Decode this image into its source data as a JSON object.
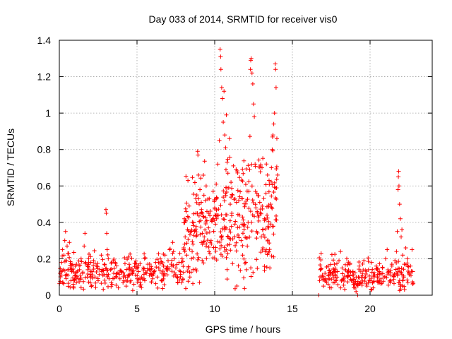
{
  "chart_data": {
    "type": "scatter",
    "title": "Day 033 of 2014, SRMTID for receiver vis0",
    "xlabel": "GPS time / hours",
    "ylabel": "SRMTID / TECUs",
    "xlim": [
      0,
      24
    ],
    "ylim": [
      0,
      1.4
    ],
    "xticks": [
      0,
      5,
      10,
      15,
      20
    ],
    "yticks": [
      0,
      0.2,
      0.4,
      0.6,
      0.8,
      1,
      1.2,
      1.4
    ],
    "xtick_labels": [
      "0",
      "5",
      "10",
      "15",
      "20"
    ],
    "ytick_labels": [
      "0",
      "0.2",
      "0.4",
      "0.6",
      "0.8",
      "1",
      "1.2",
      "1.4"
    ],
    "grid": true,
    "marker": "+",
    "color": "#ff0000",
    "series": [
      {
        "name": "vis0",
        "points": [
          [
            0.05,
            0.12
          ],
          [
            0.15,
            0.18
          ],
          [
            0.2,
            0.25
          ],
          [
            0.25,
            0.14
          ],
          [
            0.3,
            0.22
          ],
          [
            0.35,
            0.3
          ],
          [
            0.4,
            0.35
          ],
          [
            0.45,
            0.19
          ],
          [
            0.5,
            0.27
          ],
          [
            0.55,
            0.11
          ],
          [
            0.6,
            0.23
          ],
          [
            0.65,
            0.29
          ],
          [
            0.7,
            0.15
          ],
          [
            0.75,
            0.08
          ],
          [
            0.8,
            0.13
          ],
          [
            0.9,
            0.06
          ],
          [
            1.0,
            0.11
          ],
          [
            1.1,
            0.17
          ],
          [
            1.2,
            0.09
          ],
          [
            1.3,
            0.14
          ],
          [
            1.4,
            0.2
          ],
          [
            1.5,
            0.12
          ],
          [
            1.6,
            0.27
          ],
          [
            1.65,
            0.34
          ],
          [
            1.7,
            0.18
          ],
          [
            1.8,
            0.1
          ],
          [
            1.9,
            0.15
          ],
          [
            2.0,
            0.07
          ],
          [
            2.1,
            0.13
          ],
          [
            2.2,
            0.19
          ],
          [
            2.3,
            0.1
          ],
          [
            2.4,
            0.16
          ],
          [
            2.5,
            0.08
          ],
          [
            2.6,
            0.14
          ],
          [
            2.7,
            0.22
          ],
          [
            2.8,
            0.11
          ],
          [
            2.9,
            0.17
          ],
          [
            3.0,
            0.47
          ],
          [
            3.02,
            0.45
          ],
          [
            3.05,
            0.34
          ],
          [
            3.08,
            0.25
          ],
          [
            3.15,
            0.2
          ],
          [
            3.2,
            0.09
          ],
          [
            3.3,
            0.14
          ],
          [
            3.4,
            0.06
          ],
          [
            3.5,
            0.12
          ],
          [
            3.6,
            0.18
          ],
          [
            3.7,
            0.1
          ],
          [
            3.8,
            0.04
          ],
          [
            3.9,
            0.09
          ],
          [
            4.0,
            0.13
          ],
          [
            4.1,
            0.07
          ],
          [
            4.2,
            0.11
          ],
          [
            4.3,
            0.05
          ],
          [
            4.4,
            0.1
          ],
          [
            4.5,
            0.14
          ],
          [
            4.6,
            0.08
          ],
          [
            4.7,
            0.12
          ],
          [
            4.8,
            0.06
          ],
          [
            4.9,
            0.11
          ],
          [
            5.0,
            0.09
          ],
          [
            5.1,
            0.13
          ],
          [
            5.2,
            0.07
          ],
          [
            5.3,
            0.1
          ],
          [
            5.4,
            0.15
          ],
          [
            5.5,
            0.08
          ],
          [
            5.6,
            0.12
          ],
          [
            5.7,
            0.17
          ],
          [
            5.8,
            0.11
          ],
          [
            5.9,
            0.14
          ],
          [
            6.0,
            0.09
          ],
          [
            6.1,
            0.13
          ],
          [
            6.2,
            0.18
          ],
          [
            6.3,
            0.1
          ],
          [
            6.4,
            0.15
          ],
          [
            6.5,
            0.2
          ],
          [
            6.6,
            0.12
          ],
          [
            6.7,
            0.16
          ],
          [
            6.8,
            0.22
          ],
          [
            6.9,
            0.14
          ],
          [
            7.0,
            0.19
          ],
          [
            7.1,
            0.25
          ],
          [
            7.2,
            0.17
          ],
          [
            7.3,
            0.29
          ],
          [
            7.35,
            0.24
          ],
          [
            7.4,
            0.2
          ],
          [
            7.5,
            0.15
          ],
          [
            7.6,
            0.1
          ],
          [
            7.7,
            0.18
          ],
          [
            7.8,
            0.13
          ],
          [
            7.9,
            0.2
          ],
          [
            8.0,
            0.26
          ],
          [
            8.05,
            0.42
          ],
          [
            8.1,
            0.32
          ],
          [
            8.2,
            0.22
          ],
          [
            8.3,
            0.15
          ],
          [
            8.4,
            0.1
          ],
          [
            8.5,
            0.2
          ],
          [
            8.6,
            0.28
          ],
          [
            8.7,
            0.35
          ],
          [
            8.8,
            0.45
          ],
          [
            8.85,
            0.55
          ],
          [
            8.9,
            0.79
          ],
          [
            8.92,
            0.77
          ],
          [
            8.95,
            0.66
          ],
          [
            9.0,
            0.5
          ],
          [
            9.05,
            0.58
          ],
          [
            9.1,
            0.41
          ],
          [
            9.15,
            0.47
          ],
          [
            9.2,
            0.34
          ],
          [
            9.3,
            0.43
          ],
          [
            9.4,
            0.52
          ],
          [
            9.45,
            0.6
          ],
          [
            9.5,
            0.46
          ],
          [
            9.6,
            0.37
          ],
          [
            9.65,
            0.53
          ],
          [
            9.7,
            0.29
          ],
          [
            9.8,
            0.41
          ],
          [
            9.9,
            0.57
          ],
          [
            10.0,
            0.48
          ],
          [
            10.05,
            0.39
          ],
          [
            10.1,
            0.61
          ],
          [
            10.2,
            0.72
          ],
          [
            10.3,
            0.85
          ],
          [
            10.35,
            1.35
          ],
          [
            10.38,
            1.31
          ],
          [
            10.4,
            1.24
          ],
          [
            10.45,
            1.14
          ],
          [
            10.5,
            1.08
          ],
          [
            10.55,
            0.95
          ],
          [
            10.6,
            1.12
          ],
          [
            10.65,
            0.88
          ],
          [
            10.7,
            0.81
          ],
          [
            10.75,
            0.99
          ],
          [
            10.8,
            0.73
          ],
          [
            10.85,
            0.67
          ],
          [
            10.9,
            0.59
          ],
          [
            10.95,
            0.86
          ],
          [
            11.0,
            0.5
          ],
          [
            11.05,
            0.62
          ],
          [
            11.1,
            0.45
          ],
          [
            11.15,
            0.55
          ],
          [
            11.2,
            0.71
          ],
          [
            11.3,
            0.39
          ],
          [
            11.4,
            0.51
          ],
          [
            11.5,
            0.33
          ],
          [
            11.6,
            0.44
          ],
          [
            11.7,
            0.3
          ],
          [
            11.8,
            0.22
          ],
          [
            11.9,
            0.38
          ],
          [
            12.0,
            0.18
          ],
          [
            12.05,
            0.14
          ],
          [
            12.1,
            0.27
          ],
          [
            12.15,
            0.4
          ],
          [
            12.2,
            0.57
          ],
          [
            12.25,
            0.69
          ],
          [
            12.3,
            1.24
          ],
          [
            12.32,
            1.29
          ],
          [
            12.35,
            1.3
          ],
          [
            12.4,
            1.22
          ],
          [
            12.45,
            1.16
          ],
          [
            12.5,
            1.05
          ],
          [
            12.55,
            0.98
          ],
          [
            12.6,
            0.72
          ],
          [
            12.65,
            0.48
          ],
          [
            12.7,
            0.35
          ],
          [
            12.8,
            0.43
          ],
          [
            12.9,
            0.51
          ],
          [
            13.0,
            0.32
          ],
          [
            13.1,
            0.26
          ],
          [
            13.2,
            0.42
          ],
          [
            13.3,
            0.56
          ],
          [
            13.4,
            0.66
          ],
          [
            13.5,
            0.24
          ],
          [
            13.55,
            0.15
          ],
          [
            13.6,
            0.5
          ],
          [
            13.65,
            0.7
          ],
          [
            13.7,
            0.8
          ],
          [
            13.75,
            0.88
          ],
          [
            13.8,
            0.94
          ],
          [
            13.85,
            1.0
          ],
          [
            13.9,
            1.27
          ],
          [
            13.92,
            1.24
          ],
          [
            13.95,
            1.14
          ],
          [
            14.0,
            0.86
          ],
          [
            14.05,
            0.66
          ],
          [
            16.7,
            0.0
          ],
          [
            16.75,
            0.08
          ],
          [
            16.8,
            0.14
          ],
          [
            16.85,
            0.23
          ],
          [
            16.9,
            0.1
          ],
          [
            17.0,
            0.05
          ],
          [
            17.1,
            0.12
          ],
          [
            17.2,
            0.07
          ],
          [
            17.3,
            0.16
          ],
          [
            17.4,
            0.09
          ],
          [
            17.5,
            0.04
          ],
          [
            17.6,
            0.11
          ],
          [
            17.7,
            0.17
          ],
          [
            17.8,
            0.08
          ],
          [
            17.9,
            0.13
          ],
          [
            18.0,
            0.19
          ],
          [
            18.1,
            0.24
          ],
          [
            18.2,
            0.15
          ],
          [
            18.3,
            0.09
          ],
          [
            18.4,
            0.14
          ],
          [
            18.5,
            0.2
          ],
          [
            18.6,
            0.11
          ],
          [
            18.7,
            0.17
          ],
          [
            18.8,
            0.08
          ],
          [
            18.9,
            0.13
          ],
          [
            19.0,
            0.06
          ],
          [
            19.1,
            0.02
          ],
          [
            19.2,
            0.0
          ],
          [
            19.25,
            0.1
          ],
          [
            19.3,
            0.16
          ],
          [
            19.4,
            0.07
          ],
          [
            19.5,
            0.12
          ],
          [
            19.6,
            0.19
          ],
          [
            19.7,
            0.1
          ],
          [
            19.8,
            0.05
          ],
          [
            19.9,
            0.14
          ],
          [
            20.0,
            0.08
          ],
          [
            20.1,
            0.18
          ],
          [
            20.2,
            0.04
          ],
          [
            20.3,
            0.11
          ],
          [
            20.4,
            0.16
          ],
          [
            20.5,
            0.07
          ],
          [
            20.6,
            0.13
          ],
          [
            20.7,
            0.09
          ],
          [
            20.8,
            0.15
          ],
          [
            20.9,
            0.1
          ],
          [
            21.0,
            0.2
          ],
          [
            21.1,
            0.25
          ],
          [
            21.2,
            0.13
          ],
          [
            21.3,
            0.08
          ],
          [
            21.4,
            0.16
          ],
          [
            21.5,
            0.11
          ],
          [
            21.6,
            0.19
          ],
          [
            21.7,
            0.24
          ],
          [
            21.75,
            0.35
          ],
          [
            21.8,
            0.58
          ],
          [
            21.82,
            0.65
          ],
          [
            21.84,
            0.68
          ],
          [
            21.86,
            0.6
          ],
          [
            21.9,
            0.5
          ],
          [
            21.95,
            0.42
          ],
          [
            22.0,
            0.32
          ],
          [
            22.05,
            0.36
          ],
          [
            22.1,
            0.22
          ],
          [
            22.2,
            0.17
          ],
          [
            22.3,
            0.26
          ],
          [
            22.4,
            0.2
          ],
          [
            22.5,
            0.12
          ],
          [
            22.6,
            0.16
          ],
          [
            22.7,
            0.25
          ],
          [
            22.75,
            0.13
          ]
        ]
      }
    ],
    "dense_bands": [
      {
        "x_range": [
          0.0,
          8.0
        ],
        "mean": 0.13,
        "spread": 0.05,
        "count": 260,
        "seed": 7
      },
      {
        "x_range": [
          8.0,
          10.0
        ],
        "mean": 0.35,
        "spread": 0.14,
        "count": 110,
        "seed": 11
      },
      {
        "x_range": [
          10.0,
          12.0
        ],
        "mean": 0.42,
        "spread": 0.16,
        "count": 120,
        "seed": 13
      },
      {
        "x_range": [
          12.0,
          14.0
        ],
        "mean": 0.48,
        "spread": 0.18,
        "count": 110,
        "seed": 17
      },
      {
        "x_range": [
          16.7,
          22.8
        ],
        "mean": 0.11,
        "spread": 0.045,
        "count": 210,
        "seed": 19
      }
    ]
  }
}
